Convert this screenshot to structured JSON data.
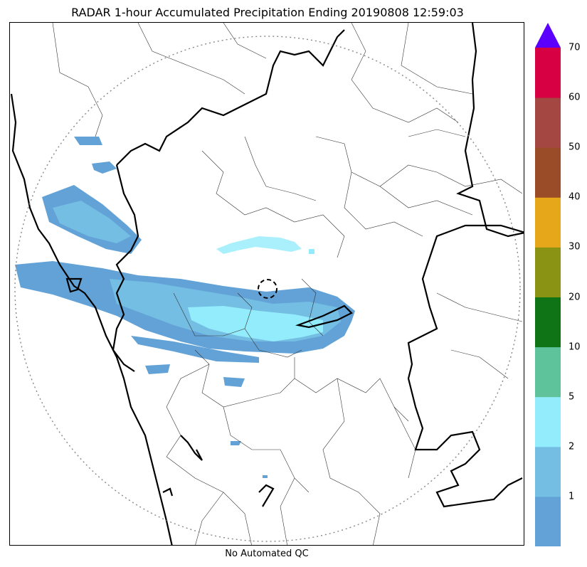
{
  "title": "RADAR 1-hour Accumulated Precipitation Ending 20190808 12:59:03",
  "qc_label": "No Automated QC",
  "colorbar": {
    "bins": [
      {
        "label": "1",
        "color": "#62a2d6"
      },
      {
        "label": "2",
        "color": "#74bde3"
      },
      {
        "label": "5",
        "color": "#93ecfb"
      },
      {
        "label": "10",
        "color": "#5ec39b"
      },
      {
        "label": "20",
        "color": "#0e7416"
      },
      {
        "label": "30",
        "color": "#8a9314"
      },
      {
        "label": "40",
        "color": "#e6a81a"
      },
      {
        "label": "50",
        "color": "#9a4b27"
      },
      {
        "label": "60",
        "color": "#a44742"
      },
      {
        "label": "70",
        "color": "#d70042"
      }
    ],
    "over_color": "#5b00ff"
  }
}
